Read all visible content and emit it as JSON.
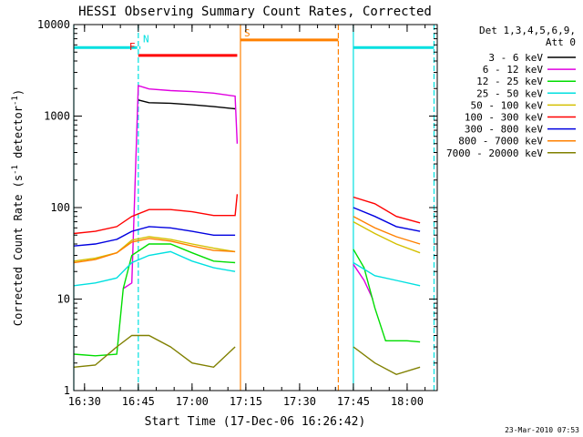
{
  "chart_data": {
    "type": "line",
    "title": "HESSI Observing Summary Count Rates, Corrected",
    "xlabel": "Start Time (17-Dec-06 16:26:42)",
    "ylabel": "Corrected Count Rate (s",
    "ylabel_sup": "-1",
    "ylabel_tail": " detector",
    "ylabel_close": ")",
    "footer": "23-Mar-2010 07:53",
    "y_scale": "log",
    "ylim": [
      1,
      10000
    ],
    "xlim_minutes": [
      16.45,
      18.14
    ],
    "x_ticks": [
      {
        "minute": 16.5,
        "label": "16:30"
      },
      {
        "minute": 16.75,
        "label": "16:45"
      },
      {
        "minute": 17.0,
        "label": "17:00"
      },
      {
        "minute": 17.25,
        "label": "17:15"
      },
      {
        "minute": 17.5,
        "label": "17:30"
      },
      {
        "minute": 17.75,
        "label": "17:45"
      },
      {
        "minute": 18.0,
        "label": "18:00"
      }
    ],
    "y_ticks": [
      {
        "value": 1,
        "label": "1"
      },
      {
        "value": 10,
        "label": "10"
      },
      {
        "value": 100,
        "label": "100"
      },
      {
        "value": 1000,
        "label": "1000"
      },
      {
        "value": 10000,
        "label": "10000"
      }
    ],
    "legend_header_line1": "Det 1,3,4,5,6,9,",
    "legend_header_line2": "Att 0",
    "legend_position": "right",
    "series": [
      {
        "name": "3 - 6 keV",
        "color": "#000000",
        "points": [
          [
            16.75,
            1500
          ],
          [
            16.8,
            1400
          ],
          [
            16.9,
            1380
          ],
          [
            17.0,
            1330
          ],
          [
            17.1,
            1270
          ],
          [
            17.2,
            1200
          ]
        ]
      },
      {
        "name": "6 - 12 keV",
        "color": "#e000e0",
        "points": [
          [
            16.68,
            13
          ],
          [
            16.72,
            15
          ],
          [
            16.75,
            2150
          ],
          [
            16.8,
            1980
          ],
          [
            16.9,
            1900
          ],
          [
            17.0,
            1850
          ],
          [
            17.1,
            1780
          ],
          [
            17.2,
            1650
          ],
          [
            17.21,
            500
          ],
          [
            17.75,
            24
          ],
          [
            17.8,
            16
          ],
          [
            17.84,
            10
          ]
        ]
      },
      {
        "name": "12 - 25 keV",
        "color": "#00dd00",
        "points": [
          [
            16.45,
            2.5
          ],
          [
            16.55,
            2.4
          ],
          [
            16.65,
            2.5
          ],
          [
            16.68,
            13
          ],
          [
            16.72,
            30
          ],
          [
            16.8,
            40
          ],
          [
            16.9,
            40
          ],
          [
            17.0,
            32
          ],
          [
            17.1,
            26
          ],
          [
            17.2,
            25
          ],
          [
            17.75,
            35
          ],
          [
            17.8,
            22
          ],
          [
            17.85,
            8
          ],
          [
            17.9,
            3.5
          ],
          [
            18.0,
            3.5
          ],
          [
            18.06,
            3.4
          ]
        ]
      },
      {
        "name": "25 - 50 keV",
        "color": "#00e0e0",
        "points": [
          [
            16.45,
            14
          ],
          [
            16.55,
            15
          ],
          [
            16.65,
            17
          ],
          [
            16.72,
            25
          ],
          [
            16.8,
            30
          ],
          [
            16.9,
            33
          ],
          [
            17.0,
            26
          ],
          [
            17.1,
            22
          ],
          [
            17.2,
            20
          ],
          [
            17.75,
            25
          ],
          [
            17.85,
            18
          ],
          [
            17.95,
            16
          ],
          [
            18.06,
            14
          ]
        ]
      },
      {
        "name": "50 - 100 keV",
        "color": "#d4c000",
        "points": [
          [
            16.45,
            26
          ],
          [
            16.55,
            28
          ],
          [
            16.65,
            32
          ],
          [
            16.72,
            44
          ],
          [
            16.8,
            48
          ],
          [
            16.9,
            45
          ],
          [
            17.0,
            40
          ],
          [
            17.1,
            36
          ],
          [
            17.2,
            33
          ],
          [
            17.75,
            70
          ],
          [
            17.85,
            52
          ],
          [
            17.95,
            40
          ],
          [
            18.06,
            32
          ]
        ]
      },
      {
        "name": "100 - 300 keV",
        "color": "#ff0000",
        "points": [
          [
            16.45,
            52
          ],
          [
            16.55,
            55
          ],
          [
            16.65,
            62
          ],
          [
            16.72,
            80
          ],
          [
            16.8,
            95
          ],
          [
            16.9,
            95
          ],
          [
            17.0,
            90
          ],
          [
            17.1,
            82
          ],
          [
            17.2,
            82
          ],
          [
            17.21,
            140
          ],
          [
            17.75,
            130
          ],
          [
            17.85,
            110
          ],
          [
            17.95,
            80
          ],
          [
            18.06,
            68
          ]
        ]
      },
      {
        "name": "300 - 800 keV",
        "color": "#0000e0",
        "points": [
          [
            16.45,
            38
          ],
          [
            16.55,
            40
          ],
          [
            16.65,
            45
          ],
          [
            16.72,
            55
          ],
          [
            16.8,
            62
          ],
          [
            16.9,
            60
          ],
          [
            17.0,
            55
          ],
          [
            17.1,
            50
          ],
          [
            17.2,
            50
          ],
          [
            17.75,
            100
          ],
          [
            17.85,
            80
          ],
          [
            17.95,
            62
          ],
          [
            18.06,
            55
          ]
        ]
      },
      {
        "name": "800 - 7000 keV",
        "color": "#ff8000",
        "points": [
          [
            16.45,
            25
          ],
          [
            16.55,
            27
          ],
          [
            16.65,
            32
          ],
          [
            16.72,
            42
          ],
          [
            16.8,
            46
          ],
          [
            16.9,
            43
          ],
          [
            17.0,
            38
          ],
          [
            17.1,
            34
          ],
          [
            17.2,
            33
          ],
          [
            17.75,
            80
          ],
          [
            17.85,
            60
          ],
          [
            17.95,
            48
          ],
          [
            18.06,
            40
          ]
        ]
      },
      {
        "name": "7000 - 20000 keV",
        "color": "#808000",
        "points": [
          [
            16.45,
            1.8
          ],
          [
            16.55,
            1.9
          ],
          [
            16.65,
            3
          ],
          [
            16.72,
            4
          ],
          [
            16.8,
            4
          ],
          [
            16.9,
            3
          ],
          [
            17.0,
            2
          ],
          [
            17.1,
            1.8
          ],
          [
            17.2,
            3
          ],
          [
            17.75,
            3
          ],
          [
            17.85,
            2
          ],
          [
            17.95,
            1.5
          ],
          [
            18.06,
            1.8
          ]
        ]
      }
    ],
    "flag_bars": [
      {
        "label": "",
        "color": "#00e0e0",
        "x0": 16.45,
        "x1": 16.745,
        "y": 5600
      },
      {
        "label": "N",
        "color": "#00e0e0",
        "x0": 16.755,
        "x1": 16.76,
        "y": 5600
      },
      {
        "label": "F",
        "color": "#ff0000",
        "x0": 16.75,
        "x1": 17.21,
        "y": 4600
      },
      {
        "label": "S",
        "color": "#ff8000",
        "x0": 17.225,
        "x1": 17.68,
        "y": 6800
      },
      {
        "label": "",
        "color": "#00e0e0",
        "x0": 17.75,
        "x1": 18.125,
        "y": 5600
      }
    ],
    "vertical_markers": [
      {
        "minute": 16.45,
        "color": "#00e0e0",
        "style": "solid"
      },
      {
        "minute": 16.75,
        "color": "#00e0e0",
        "style": "dashed"
      },
      {
        "minute": 17.225,
        "color": "#ff8000",
        "style": "solid"
      },
      {
        "minute": 17.68,
        "color": "#ff8000",
        "style": "dashed"
      },
      {
        "minute": 17.75,
        "color": "#00e0e0",
        "style": "solid"
      },
      {
        "minute": 18.125,
        "color": "#00e0e0",
        "style": "dashed"
      }
    ]
  }
}
